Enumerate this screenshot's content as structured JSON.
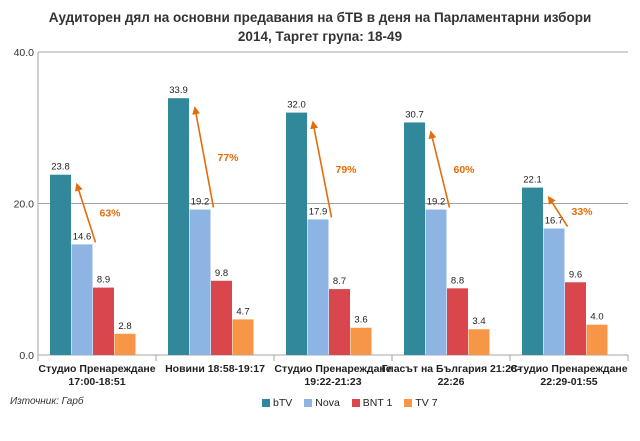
{
  "chart_data": {
    "type": "bar",
    "title_lines": [
      "Аудиторен дял на основни предавания на бТВ в деня на Парламентарни избори",
      "2014, Таргет група: 18-49"
    ],
    "categories": [
      [
        "Студио Пренареждане",
        "17:00-18:51"
      ],
      [
        "Новини 18:58-19:17"
      ],
      [
        "Студио Пренареждане",
        "19:22-21:23"
      ],
      [
        "Гласът на България 21:28-",
        "22:26"
      ],
      [
        "Студио Пренареждане",
        "22:29-01:55"
      ]
    ],
    "series": [
      {
        "name": "bTV",
        "color": "#31889b",
        "values": [
          23.8,
          33.9,
          32.0,
          30.7,
          22.1
        ]
      },
      {
        "name": "Nova",
        "color": "#8eb4e3",
        "values": [
          14.6,
          19.2,
          17.9,
          19.2,
          16.7
        ]
      },
      {
        "name": "BNT 1",
        "color": "#d9464b",
        "values": [
          8.9,
          9.8,
          8.7,
          8.8,
          9.6
        ]
      },
      {
        "name": "TV 7",
        "color": "#f79646",
        "values": [
          2.8,
          4.7,
          3.6,
          3.4,
          4.0
        ]
      }
    ],
    "data_labels": [
      [
        "23.8",
        "14.6",
        "8.9",
        "2.8"
      ],
      [
        "33.9",
        "19.2",
        "9.8",
        "4.7"
      ],
      [
        "32.0",
        "17.9",
        "8.7",
        "3.6"
      ],
      [
        "30.7",
        "19.2",
        "8.8",
        "3.4"
      ],
      [
        "22.1",
        "16.7",
        "9.6",
        "4.0"
      ]
    ],
    "advantage_labels": [
      "63%",
      "77%",
      "79%",
      "60%",
      "33%"
    ],
    "ylim": [
      0,
      40
    ],
    "y_ticks": [
      "0.0",
      "20.0",
      "40.0"
    ],
    "grid": true,
    "legend_position": "bottom",
    "arrow_color": "#e46c0a",
    "grid_color": "#a6a6a6"
  },
  "source": "Източник: Гарб"
}
